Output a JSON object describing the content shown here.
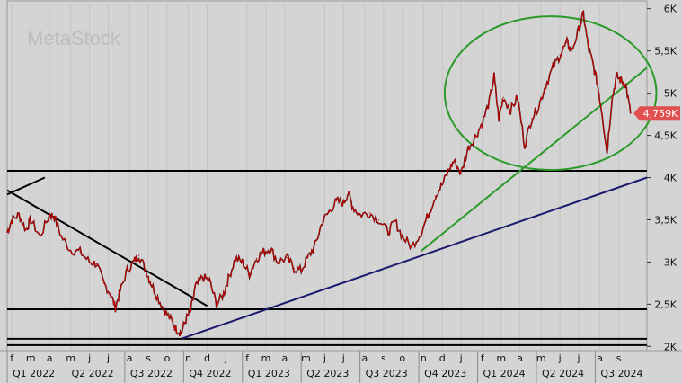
{
  "watermark": "MetaStock",
  "chart_data": {
    "type": "line",
    "title": "",
    "xlabel": "",
    "ylabel": "",
    "ylim": [
      1950,
      6050
    ],
    "xlim": [
      2022.0,
      2024.72
    ],
    "y_ticks": [
      {
        "value": 2000,
        "label": "2K"
      },
      {
        "value": 2500,
        "label": "2,5K"
      },
      {
        "value": 3000,
        "label": "3K"
      },
      {
        "value": 3500,
        "label": "3,5K"
      },
      {
        "value": 4000,
        "label": "4K"
      },
      {
        "value": 4500,
        "label": "4,5K"
      },
      {
        "value": 5000,
        "label": "5K"
      },
      {
        "value": 5500,
        "label": "5,5K"
      },
      {
        "value": 6000,
        "label": "6K"
      }
    ],
    "month_ticks": [
      {
        "t": 2022.02,
        "label": "f"
      },
      {
        "t": 2022.1,
        "label": "m"
      },
      {
        "t": 2022.18,
        "label": "a"
      },
      {
        "t": 2022.27,
        "label": "m"
      },
      {
        "t": 2022.35,
        "label": "j"
      },
      {
        "t": 2022.43,
        "label": "j"
      },
      {
        "t": 2022.52,
        "label": "a"
      },
      {
        "t": 2022.6,
        "label": "s"
      },
      {
        "t": 2022.68,
        "label": "o"
      },
      {
        "t": 2022.77,
        "label": "n"
      },
      {
        "t": 2022.85,
        "label": "d"
      },
      {
        "t": 2022.93,
        "label": "j"
      },
      {
        "t": 2023.02,
        "label": "f"
      },
      {
        "t": 2023.1,
        "label": "m"
      },
      {
        "t": 2023.18,
        "label": "a"
      },
      {
        "t": 2023.27,
        "label": "m"
      },
      {
        "t": 2023.35,
        "label": "j"
      },
      {
        "t": 2023.43,
        "label": "j"
      },
      {
        "t": 2023.52,
        "label": "a"
      },
      {
        "t": 2023.6,
        "label": "s"
      },
      {
        "t": 2023.68,
        "label": "o"
      },
      {
        "t": 2023.77,
        "label": "n"
      },
      {
        "t": 2023.85,
        "label": "d"
      },
      {
        "t": 2023.93,
        "label": "j"
      },
      {
        "t": 2024.02,
        "label": "f"
      },
      {
        "t": 2024.1,
        "label": "m"
      },
      {
        "t": 2024.18,
        "label": "a"
      },
      {
        "t": 2024.27,
        "label": "m"
      },
      {
        "t": 2024.35,
        "label": "j"
      },
      {
        "t": 2024.43,
        "label": "j"
      },
      {
        "t": 2024.52,
        "label": "a"
      },
      {
        "t": 2024.6,
        "label": "s"
      }
    ],
    "quarter_ticks": [
      {
        "t": 2022.0,
        "label": "Q1 2022"
      },
      {
        "t": 2022.25,
        "label": "Q2 2022"
      },
      {
        "t": 2022.5,
        "label": "Q3 2022"
      },
      {
        "t": 2022.75,
        "label": "Q4 2022"
      },
      {
        "t": 2023.0,
        "label": "Q1 2023"
      },
      {
        "t": 2023.25,
        "label": "Q2 2023"
      },
      {
        "t": 2023.5,
        "label": "Q3 2023"
      },
      {
        "t": 2023.75,
        "label": "Q4 2023"
      },
      {
        "t": 2024.0,
        "label": "Q1 2024"
      },
      {
        "t": 2024.25,
        "label": "Q2 2024"
      },
      {
        "t": 2024.5,
        "label": "Q3 2024"
      }
    ],
    "series": [
      {
        "color": "#cc0000",
        "points": [
          [
            2022.0,
            3350
          ],
          [
            2022.02,
            3500
          ],
          [
            2022.05,
            3560
          ],
          [
            2022.08,
            3380
          ],
          [
            2022.1,
            3500
          ],
          [
            2022.14,
            3300
          ],
          [
            2022.18,
            3560
          ],
          [
            2022.2,
            3540
          ],
          [
            2022.23,
            3300
          ],
          [
            2022.27,
            3140
          ],
          [
            2022.31,
            3120
          ],
          [
            2022.35,
            3000
          ],
          [
            2022.38,
            2980
          ],
          [
            2022.41,
            2750
          ],
          [
            2022.44,
            2620
          ],
          [
            2022.46,
            2460
          ],
          [
            2022.48,
            2650
          ],
          [
            2022.51,
            2900
          ],
          [
            2022.54,
            3010
          ],
          [
            2022.56,
            3080
          ],
          [
            2022.59,
            2900
          ],
          [
            2022.61,
            2760
          ],
          [
            2022.64,
            2580
          ],
          [
            2022.67,
            2420
          ],
          [
            2022.7,
            2300
          ],
          [
            2022.72,
            2200
          ],
          [
            2022.74,
            2160
          ],
          [
            2022.76,
            2320
          ],
          [
            2022.78,
            2420
          ],
          [
            2022.8,
            2700
          ],
          [
            2022.83,
            2820
          ],
          [
            2022.86,
            2780
          ],
          [
            2022.89,
            2500
          ],
          [
            2022.92,
            2620
          ],
          [
            2022.94,
            2800
          ],
          [
            2022.97,
            3040
          ],
          [
            2023.0,
            3000
          ],
          [
            2023.03,
            2860
          ],
          [
            2023.06,
            3040
          ],
          [
            2023.09,
            3120
          ],
          [
            2023.12,
            3160
          ],
          [
            2023.15,
            3000
          ],
          [
            2023.19,
            3050
          ],
          [
            2023.22,
            2920
          ],
          [
            2023.25,
            2900
          ],
          [
            2023.28,
            3060
          ],
          [
            2023.31,
            3200
          ],
          [
            2023.34,
            3480
          ],
          [
            2023.37,
            3600
          ],
          [
            2023.4,
            3720
          ],
          [
            2023.43,
            3700
          ],
          [
            2023.45,
            3820
          ],
          [
            2023.47,
            3650
          ],
          [
            2023.5,
            3560
          ],
          [
            2023.54,
            3580
          ],
          [
            2023.58,
            3500
          ],
          [
            2023.62,
            3360
          ],
          [
            2023.65,
            3480
          ],
          [
            2023.68,
            3300
          ],
          [
            2023.72,
            3180
          ],
          [
            2023.76,
            3350
          ],
          [
            2023.79,
            3560
          ],
          [
            2023.82,
            3780
          ],
          [
            2023.85,
            3920
          ],
          [
            2023.88,
            4100
          ],
          [
            2023.9,
            4200
          ],
          [
            2023.93,
            4050
          ],
          [
            2023.96,
            4350
          ],
          [
            2023.99,
            4480
          ],
          [
            2024.02,
            4650
          ],
          [
            2024.05,
            4900
          ],
          [
            2024.07,
            5200
          ],
          [
            2024.09,
            4700
          ],
          [
            2024.11,
            4950
          ],
          [
            2024.14,
            4800
          ],
          [
            2024.17,
            4950
          ],
          [
            2024.2,
            4380
          ],
          [
            2024.23,
            4700
          ],
          [
            2024.26,
            4850
          ],
          [
            2024.29,
            5100
          ],
          [
            2024.32,
            5300
          ],
          [
            2024.35,
            5450
          ],
          [
            2024.38,
            5600
          ],
          [
            2024.4,
            5500
          ],
          [
            2024.43,
            5750
          ],
          [
            2024.45,
            5940
          ],
          [
            2024.47,
            5550
          ],
          [
            2024.49,
            5350
          ],
          [
            2024.51,
            5100
          ],
          [
            2024.53,
            4750
          ],
          [
            2024.55,
            4300
          ],
          [
            2024.57,
            4900
          ],
          [
            2024.59,
            5200
          ],
          [
            2024.61,
            5150
          ],
          [
            2024.63,
            5100
          ],
          [
            2024.65,
            4759
          ]
        ]
      }
    ],
    "trendlines": [
      {
        "color": "#000000",
        "from": [
          2022.0,
          3850
        ],
        "to": [
          2022.85,
          2480
        ]
      },
      {
        "color": "#000000",
        "from": [
          2022.0,
          3800
        ],
        "to": [
          2022.16,
          4000
        ]
      },
      {
        "color": "#1a1a6e",
        "from": [
          2022.74,
          2090
        ],
        "to": [
          2024.72,
          4000
        ]
      },
      {
        "color": "#2b9a2b",
        "from": [
          2023.76,
          3130
        ],
        "to": [
          2024.72,
          5300
        ]
      }
    ],
    "horizontal_lines": [
      {
        "color": "#000000",
        "value": 4080
      },
      {
        "color": "#000000",
        "value": 2440
      },
      {
        "color": "#000000",
        "value": 2090
      },
      {
        "color": "#000000",
        "value": 2015
      }
    ],
    "ellipse": {
      "color": "#2b9a2b",
      "center": [
        2024.31,
        5000
      ],
      "rx_years": 0.45,
      "ry_value": 910
    },
    "last_price": {
      "value": 4759,
      "label": "4,759K",
      "color": "#e05050"
    }
  }
}
